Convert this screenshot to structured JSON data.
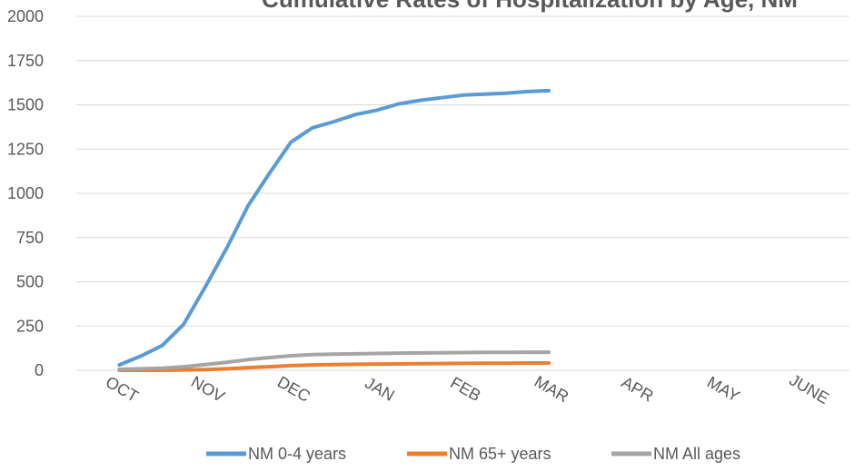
{
  "chart_data": {
    "type": "line",
    "title": "Cumulative Rates of Hospitalization by Age, NM",
    "xlabel": "",
    "ylabel": "",
    "ylim": [
      0,
      2000
    ],
    "yticks": [
      0,
      250,
      500,
      750,
      1000,
      1250,
      1500,
      1750,
      2000
    ],
    "categories": [
      "OCT",
      "NOV",
      "DEC",
      "JAN",
      "FEB",
      "MAR",
      "APR",
      "MAY",
      "JUNE"
    ],
    "grid": true,
    "legend_position": "bottom",
    "series": [
      {
        "name": "NM 0-4 years",
        "color": "#5B9BD5",
        "x": [
          0,
          0.25,
          0.5,
          0.75,
          1.0,
          1.25,
          1.5,
          1.75,
          2.0,
          2.25,
          2.5,
          2.75,
          3.0,
          3.25,
          3.5,
          3.75,
          4.0,
          4.25,
          4.5,
          4.75,
          5.0
        ],
        "values": [
          30,
          80,
          140,
          260,
          470,
          690,
          930,
          1115,
          1290,
          1370,
          1405,
          1445,
          1470,
          1505,
          1525,
          1540,
          1555,
          1560,
          1565,
          1575,
          1580
        ]
      },
      {
        "name": "NM 65+ years",
        "color": "#ED7D31",
        "x": [
          0,
          0.25,
          0.5,
          0.75,
          1.0,
          1.25,
          1.5,
          1.75,
          2.0,
          2.25,
          2.5,
          2.75,
          3.0,
          3.25,
          3.5,
          3.75,
          4.0,
          4.25,
          4.5,
          4.75,
          5.0
        ],
        "values": [
          0,
          0,
          0,
          2,
          4,
          8,
          15,
          20,
          26,
          30,
          32,
          34,
          35,
          36,
          37,
          38,
          39,
          40,
          40,
          41,
          41
        ]
      },
      {
        "name": "NM All ages",
        "color": "#A5A5A5",
        "x": [
          0,
          0.25,
          0.5,
          0.75,
          1.0,
          1.25,
          1.5,
          1.75,
          2.0,
          2.25,
          2.5,
          2.75,
          3.0,
          3.25,
          3.5,
          3.75,
          4.0,
          4.25,
          4.5,
          4.75,
          5.0
        ],
        "values": [
          5,
          8,
          12,
          20,
          32,
          45,
          60,
          72,
          82,
          88,
          91,
          93,
          95,
          97,
          98,
          99,
          100,
          101,
          101,
          102,
          102
        ]
      }
    ]
  }
}
